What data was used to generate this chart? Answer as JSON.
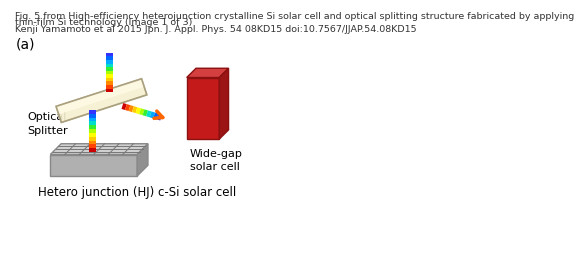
{
  "caption_line1": "Fig. 5 from High-efficiency heterojunction crystalline Si solar cell and optical splitting structure fabricated by applying",
  "caption_line2": "thin-film Si technology (Image 1 of 3)",
  "caption_line3": "Kenji Yamamoto et al 2015 Jpn. J. Appl. Phys. 54 08KD15 doi:10.7567/JJAP.54.08KD15",
  "label_a": "(a)",
  "label_optical_splitter": "Optical\nSplitter",
  "label_wide_gap": "Wide-gap\nsolar cell",
  "label_hetero": "Hetero junction (HJ) c-Si solar cell",
  "bg_color": "#ffffff",
  "caption_fontsize": 6.8,
  "label_fontsize": 8.5
}
